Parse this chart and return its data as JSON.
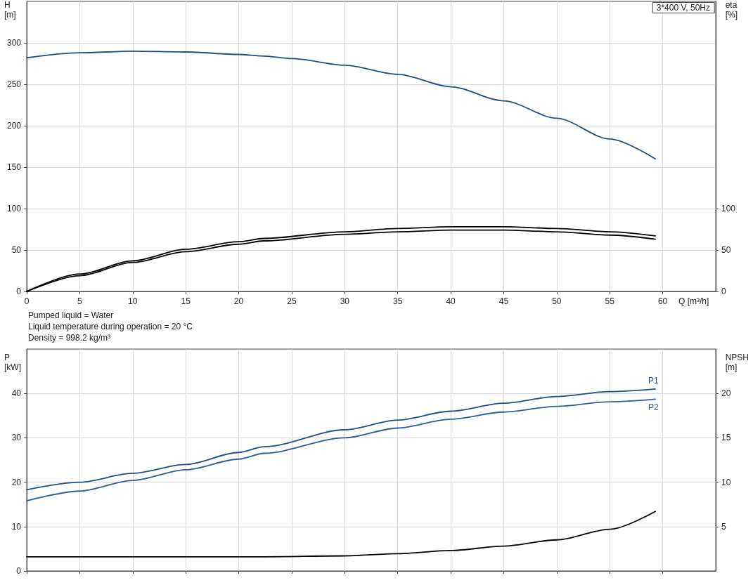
{
  "chart_data": [
    {
      "type": "line",
      "title": "3*400 V, 50Hz",
      "xlabel": "Q [m³/h]",
      "ylabel": "H [m]",
      "y2label": "eta [%]",
      "xlim": [
        0,
        65
      ],
      "xticks": [
        0,
        5,
        10,
        15,
        20,
        25,
        30,
        35,
        40,
        45,
        50,
        55,
        60
      ],
      "ylim": [
        0,
        350
      ],
      "yticks": [
        0,
        50,
        100,
        150,
        200,
        250,
        300
      ],
      "y2lim": [
        0,
        350
      ],
      "y2ticks": [
        0,
        50,
        100
      ],
      "grid": true,
      "legend": false,
      "marker": "none",
      "line_style": "solid",
      "annotations": [
        "Pumped liquid = Water",
        "Liquid temperature during operation = 20 °C",
        "Density = 998.2 kg/m³"
      ],
      "series": [
        {
          "color": "#1c4f87",
          "x": [
            0,
            5,
            10,
            15,
            20,
            22.4,
            25,
            30,
            35,
            40,
            45,
            50,
            55,
            59.3
          ],
          "values": [
            282,
            288,
            290,
            289,
            286,
            284,
            281,
            273,
            262,
            247,
            230,
            209,
            184,
            160
          ]
        },
        {
          "color": "#000000",
          "axis": "y2",
          "x": [
            0,
            5,
            10,
            15,
            20,
            22.4,
            30,
            35,
            40,
            45,
            50,
            55,
            59.3
          ],
          "values": [
            0,
            21,
            37,
            51,
            60,
            64,
            72,
            76,
            78,
            78,
            76,
            72,
            67
          ]
        },
        {
          "color": "#000000",
          "axis": "y2",
          "x": [
            0,
            5,
            10,
            15,
            20,
            22.4,
            30,
            35,
            40,
            45,
            50,
            55,
            59.3
          ],
          "values": [
            0,
            19,
            35,
            48,
            57,
            61,
            69,
            72,
            74,
            74,
            72,
            68,
            63
          ]
        }
      ]
    },
    {
      "type": "line",
      "ylabel": "P [kW]",
      "y2label": "NPSH [m]",
      "xlim": [
        0,
        65
      ],
      "xticks": [
        0,
        5,
        10,
        15,
        20,
        25,
        30,
        35,
        40,
        45,
        50,
        55,
        60
      ],
      "ylim": [
        0,
        50
      ],
      "yticks": [
        0,
        10,
        20,
        30,
        40
      ],
      "y2lim": [
        0,
        25
      ],
      "y2ticks": [
        5,
        10,
        15,
        20
      ],
      "tick_labels": "y",
      "grid": true,
      "legend": false,
      "marker": "none",
      "line_style": "solid",
      "series": [
        {
          "name": "P1",
          "color": "#1c4f87",
          "x": [
            0,
            5,
            10,
            15,
            20,
            22.4,
            30,
            35,
            40,
            45,
            50,
            55,
            59.3
          ],
          "values": [
            18.3,
            20,
            22,
            24,
            26.7,
            28,
            31.8,
            34,
            36,
            37.8,
            39.3,
            40.4,
            41
          ]
        },
        {
          "name": "P2",
          "color": "#2a5d9a",
          "x": [
            0,
            5,
            10,
            15,
            20,
            22.4,
            30,
            35,
            40,
            45,
            50,
            55,
            59.3
          ],
          "values": [
            15.8,
            18,
            20.4,
            22.8,
            25.2,
            26.5,
            30,
            32.2,
            34.2,
            35.8,
            37.1,
            38.1,
            38.7
          ]
        },
        {
          "color": "#000000",
          "axis": "y2",
          "x": [
            0,
            22.4,
            30,
            35,
            40,
            45,
            50,
            55,
            59.3
          ],
          "values": [
            1.6,
            1.6,
            1.7,
            1.95,
            2.3,
            2.8,
            3.5,
            4.7,
            6.7
          ]
        }
      ]
    }
  ]
}
